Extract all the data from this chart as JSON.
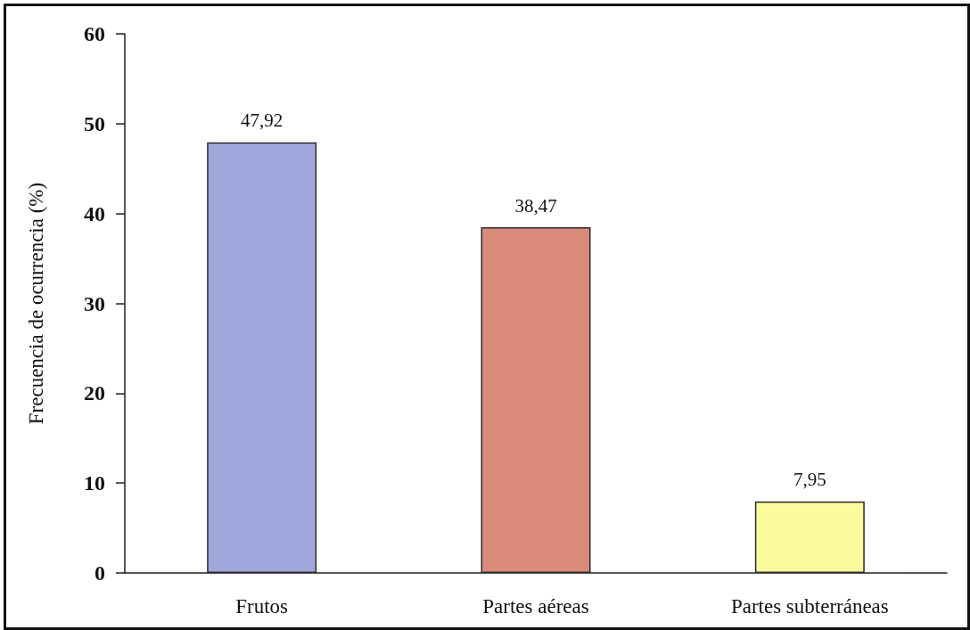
{
  "chart_data": {
    "type": "bar",
    "ylabel": "Frecuencia de ocurrencia (%)",
    "categories": [
      "Frutos",
      "Partes aéreas",
      "Partes subterráneas"
    ],
    "values": [
      47.92,
      38.47,
      7.95
    ],
    "colors": [
      "#9fa8dc",
      "#d98a7b",
      "#fcfb9b"
    ],
    "value_labels": [
      "47,92",
      "38,47",
      "7,95"
    ],
    "ylim": [
      0,
      60
    ],
    "yticks": [
      0,
      10,
      20,
      30,
      40,
      50,
      60
    ]
  }
}
